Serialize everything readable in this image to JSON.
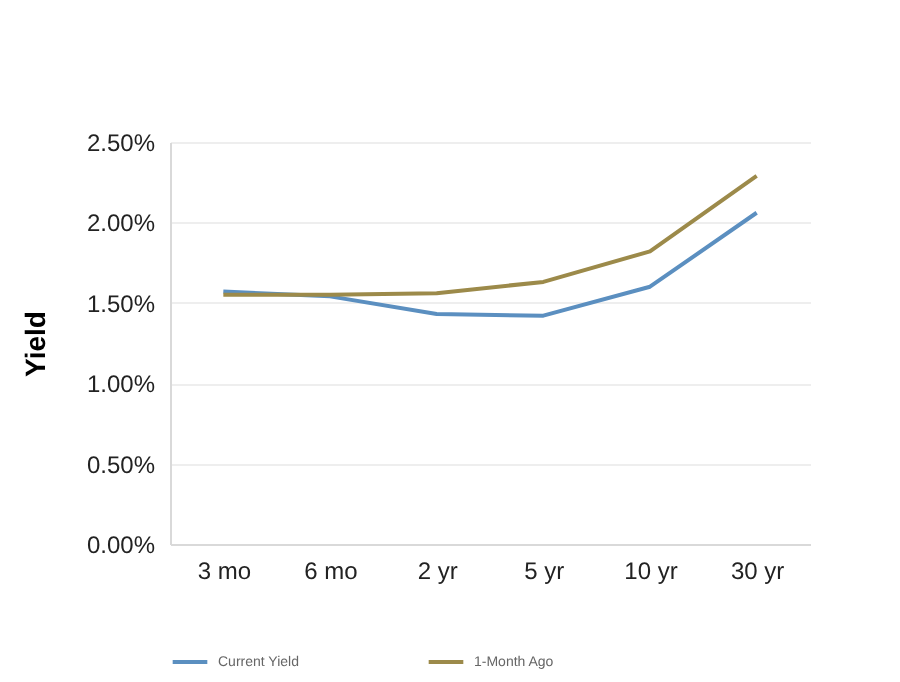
{
  "chart_data": {
    "type": "line",
    "ylabel": "Yield",
    "categories": [
      "3 mo",
      "6 mo",
      "2 yr",
      "5 yr",
      "10 yr",
      "30 yr"
    ],
    "series": [
      {
        "name": "Current Yield",
        "color": "#5b8fc0",
        "values": [
          1.57,
          1.54,
          1.43,
          1.42,
          1.6,
          2.06
        ]
      },
      {
        "name": "1-Month Ago",
        "color": "#9c8a4a",
        "values": [
          1.55,
          1.55,
          1.56,
          1.63,
          1.82,
          2.29
        ]
      }
    ],
    "ylim": [
      0,
      2.5
    ],
    "yticks": [
      {
        "value": 0,
        "label": "0.00%"
      },
      {
        "value": 0.5,
        "label": "0.50%"
      },
      {
        "value": 1,
        "label": "1.00%"
      },
      {
        "value": 1.5,
        "label": "1.50%"
      },
      {
        "value": 2,
        "label": "2.00%"
      },
      {
        "value": 2.5,
        "label": "2.50%"
      }
    ],
    "grid": "y",
    "legend": "bottom",
    "marker": "none",
    "line_style": "solid"
  }
}
